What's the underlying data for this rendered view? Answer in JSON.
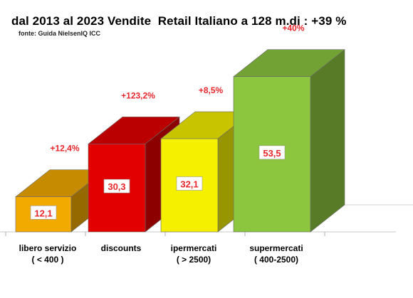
{
  "title": "dal 2013 al 2023 Vendite  Retail Italiano a 128 m.di : +39 %",
  "subtitle": "fonte: Guida NielsenIQ ICC",
  "chart_data": {
    "type": "bar",
    "categories": [
      [
        "libero servizio",
        "( < 400 )"
      ],
      [
        "discounts",
        ""
      ],
      [
        "ipermercati",
        "( > 2500)"
      ],
      [
        "supermercati",
        "( 400-2500)"
      ]
    ],
    "values": [
      12.1,
      30.3,
      32.1,
      53.5
    ],
    "value_labels": [
      "12,1",
      "30,3",
      "32,1",
      "53,5"
    ],
    "change_labels": [
      "+12,4%",
      "+123,2%",
      "+8,5%",
      "+40%"
    ],
    "colors": [
      "#f2a900",
      "#e30000",
      "#f4f000",
      "#8cc63f"
    ],
    "label_color": "#e8262b",
    "grid": false,
    "legend": "none"
  }
}
